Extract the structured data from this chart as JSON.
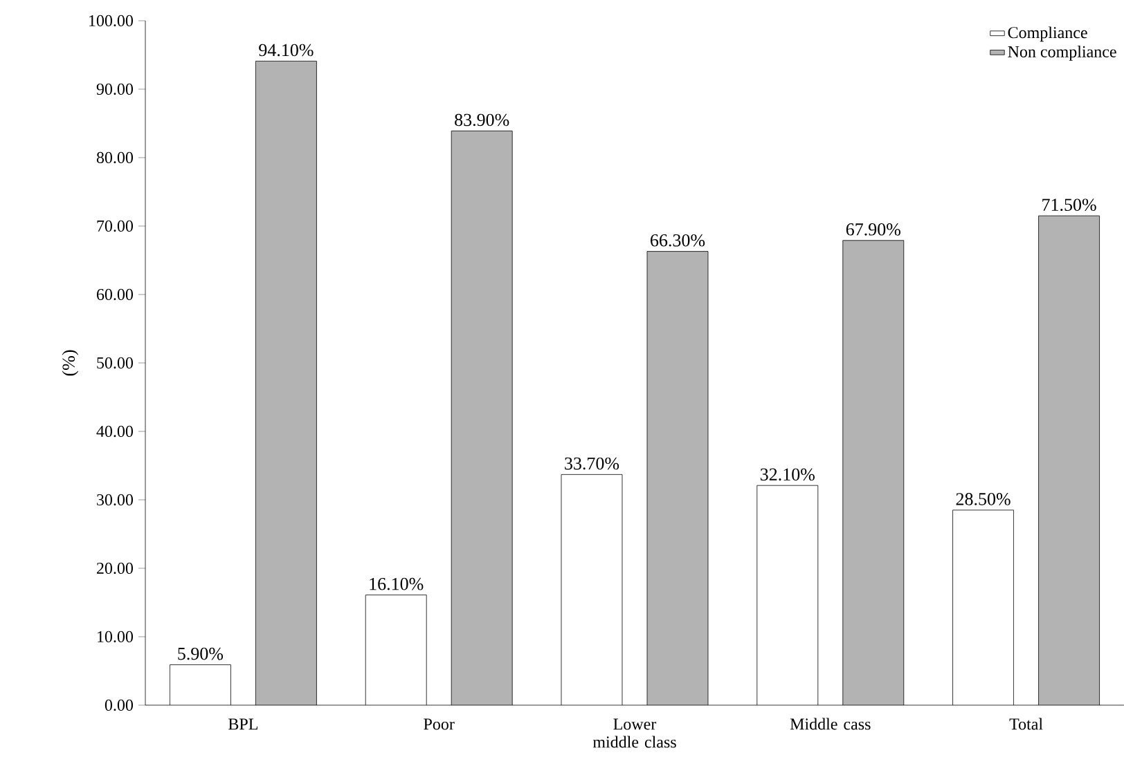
{
  "chart_data": {
    "type": "bar",
    "ylabel": "(%)",
    "categories": [
      "BPL",
      "Poor",
      "Lower middle class",
      "Middle cass",
      "Total"
    ],
    "series": [
      {
        "name": "Compliance",
        "color": "#ffffff",
        "values": [
          5.9,
          16.1,
          33.7,
          32.1,
          28.5
        ],
        "value_labels": [
          "5.90%",
          "16.10%",
          "33.70%",
          "32.10%",
          "28.50%"
        ]
      },
      {
        "name": "Non compliance",
        "color": "#b3b3b3",
        "values": [
          94.1,
          83.9,
          66.3,
          67.9,
          71.5
        ],
        "value_labels": [
          "94.10%",
          "83.90%",
          "66.30%",
          "67.90%",
          "71.50%"
        ]
      }
    ],
    "ylim": [
      0,
      100
    ],
    "yticks": [
      {
        "value": 0,
        "label": "0.00"
      },
      {
        "value": 10,
        "label": "10.00"
      },
      {
        "value": 20,
        "label": "20.00"
      },
      {
        "value": 30,
        "label": "30.00"
      },
      {
        "value": 40,
        "label": "40.00"
      },
      {
        "value": 50,
        "label": "50.00"
      },
      {
        "value": 60,
        "label": "60.00"
      },
      {
        "value": 70,
        "label": "70.00"
      },
      {
        "value": 80,
        "label": "80.00"
      },
      {
        "value": 90,
        "label": "90.00"
      },
      {
        "value": 100,
        "label": "100.00"
      }
    ],
    "legend": "top right",
    "grid": false
  }
}
